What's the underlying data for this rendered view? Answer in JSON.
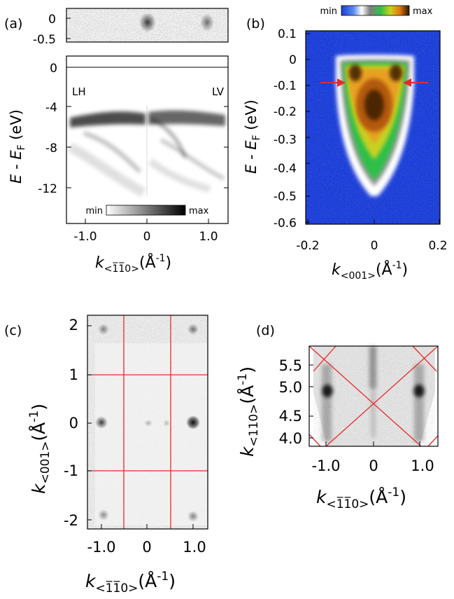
{
  "panels": {
    "a": {
      "label": "(a)",
      "left_text": "LH",
      "right_text": "LV",
      "colorbar": {
        "min": "min",
        "max": "max"
      },
      "top_ticks": [
        "0",
        "-0.5"
      ],
      "yticks": [
        "0",
        "-4",
        "-8",
        "-12"
      ],
      "xticks": [
        "-1.0",
        "0",
        "1.0"
      ],
      "ylabel": "E - E",
      "ylabel_sub": "F",
      "ylabel_unit": " (eV)",
      "xlabel_k": "k",
      "xlabel_sub": "<1̅1̅0>",
      "xlabel_unit": "(Å",
      "xlabel_exp": "-1",
      "xlabel_close": ")"
    },
    "b": {
      "label": "(b)",
      "colorbar": {
        "min": "min",
        "max": "max"
      },
      "yticks": [
        "0.1",
        "0",
        "-0.1",
        "-0.2",
        "-0.3",
        "-0.4",
        "-0.5",
        "-0.6"
      ],
      "xticks": [
        "-0.2",
        "0",
        "0.2"
      ],
      "ylabel": "E - E",
      "ylabel_sub": "F",
      "ylabel_unit": " (eV)",
      "xlabel_k": "k",
      "xlabel_sub": "<001>",
      "xlabel_unit": "(Å",
      "xlabel_exp": "-1",
      "xlabel_close": ")"
    },
    "c": {
      "label": "(c)",
      "yticks": [
        "2",
        "1",
        "0",
        "-1",
        "-2"
      ],
      "xticks": [
        "-1.0",
        "0",
        "1.0"
      ],
      "ylabel_k": "k",
      "ylabel_sub": "<001>",
      "ylabel_unit": "(Å",
      "ylabel_exp": "-1",
      "ylabel_close": ")",
      "xlabel_k": "k",
      "xlabel_sub": "<1̅1̅0>",
      "xlabel_unit": "(Å",
      "xlabel_exp": "-1",
      "xlabel_close": ")"
    },
    "d": {
      "label": "(d)",
      "yticks": [
        "5.5",
        "5.0",
        "4.5",
        "4.0"
      ],
      "xticks": [
        "-1.0",
        "0",
        "1.0"
      ],
      "ylabel_k": "k",
      "ylabel_sub": "<110>",
      "ylabel_unit": "(Å",
      "ylabel_exp": "-1",
      "ylabel_close": ")",
      "xlabel_k": "k",
      "xlabel_sub": "<1̅1̅0>",
      "xlabel_unit": "(Å",
      "xlabel_exp": "-1",
      "xlabel_close": ")"
    }
  },
  "colors": {
    "line_red": "#e8282a",
    "map_blue": "#1a3cd6",
    "map_green": "#2fbf4a",
    "map_orange": "#e07a10",
    "map_dark": "#2a1400"
  }
}
